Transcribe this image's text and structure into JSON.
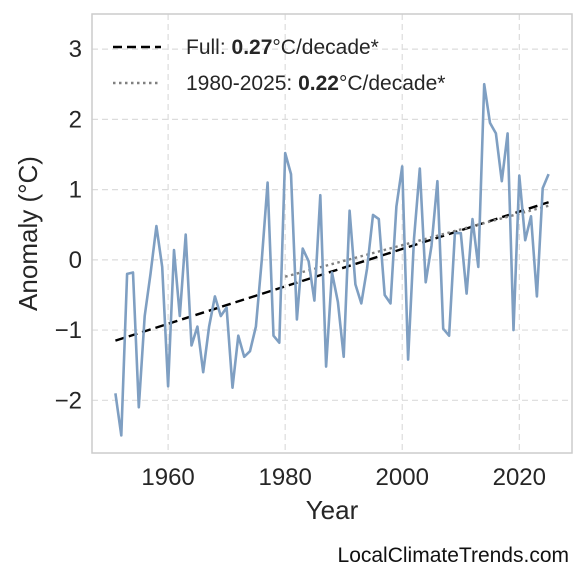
{
  "chart_data": {
    "type": "line",
    "xlabel": "Year",
    "ylabel": "Anomaly (°C)",
    "xlim": [
      1947,
      2029
    ],
    "ylim": [
      -2.75,
      3.5
    ],
    "x_ticks": [
      1960,
      1980,
      2000,
      2020
    ],
    "y_ticks": [
      3,
      2,
      1,
      0,
      -1,
      -2
    ],
    "y_tick_labels": [
      "3",
      "2",
      "1",
      "0",
      "−1",
      "−2"
    ],
    "grid": true,
    "legend_position": "top-left",
    "series": [
      {
        "name": "",
        "color": "#7f9fc2",
        "x": [
          1951,
          1952,
          1953,
          1954,
          1955,
          1956,
          1957,
          1958,
          1959,
          1960,
          1961,
          1962,
          1963,
          1964,
          1965,
          1966,
          1967,
          1968,
          1969,
          1970,
          1971,
          1972,
          1973,
          1974,
          1975,
          1976,
          1977,
          1978,
          1979,
          1980,
          1981,
          1982,
          1983,
          1984,
          1985,
          1986,
          1987,
          1988,
          1989,
          1990,
          1991,
          1992,
          1993,
          1994,
          1995,
          1996,
          1997,
          1998,
          1999,
          2000,
          2001,
          2002,
          2003,
          2004,
          2005,
          2006,
          2007,
          2008,
          2009,
          2010,
          2011,
          2012,
          2013,
          2014,
          2015,
          2016,
          2017,
          2018,
          2019,
          2020,
          2021,
          2022,
          2023,
          2024,
          2025
        ],
        "values": [
          -1.9,
          -2.5,
          -0.2,
          -0.18,
          -2.1,
          -0.8,
          -0.2,
          0.48,
          -0.1,
          -1.8,
          0.14,
          -0.8,
          0.36,
          -1.22,
          -0.95,
          -1.6,
          -0.95,
          -0.52,
          -0.8,
          -0.68,
          -1.82,
          -1.08,
          -1.38,
          -1.3,
          -0.95,
          0.0,
          1.1,
          -1.08,
          -1.18,
          1.52,
          1.22,
          -0.85,
          0.16,
          -0.02,
          -0.58,
          0.92,
          -1.52,
          -0.18,
          -0.6,
          -1.38,
          0.7,
          -0.35,
          -0.62,
          -0.12,
          0.64,
          0.58,
          -0.5,
          -0.62,
          0.76,
          1.33,
          -1.42,
          0.3,
          1.3,
          -0.32,
          0.2,
          1.12,
          -0.98,
          -1.08,
          0.38,
          0.38,
          -0.48,
          0.58,
          -0.1,
          2.5,
          1.95,
          1.8,
          1.12,
          1.8,
          -1.0,
          1.2,
          0.28,
          0.62,
          -0.52,
          1.02,
          1.22
        ]
      }
    ],
    "trends": [
      {
        "label_prefix": "Full: ",
        "label_value": "0.27",
        "label_suffix": "°C/decade*",
        "style": "dashed",
        "color": "#000000",
        "x": [
          1951,
          2025
        ],
        "y": [
          -1.15,
          0.82
        ]
      },
      {
        "label_prefix": "1980-2025: ",
        "label_value": "0.22",
        "label_suffix": "°C/decade*",
        "style": "dotted",
        "color": "#808080",
        "x": [
          1980,
          2025
        ],
        "y": [
          -0.24,
          0.77
        ]
      }
    ]
  },
  "watermark": "LocalClimateTrends.com"
}
